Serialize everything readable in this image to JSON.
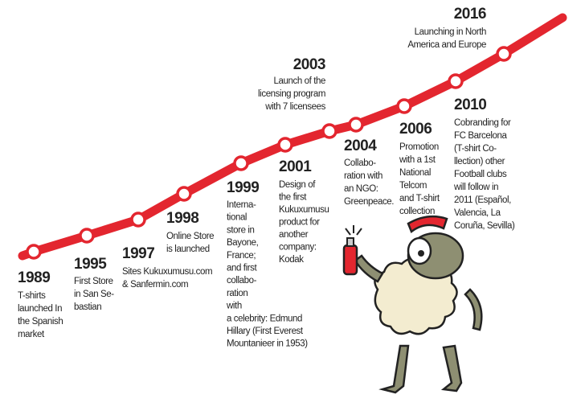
{
  "events": [
    {
      "year": "1989",
      "lines": [
        "T-shirts",
        "launched In",
        "the Spanish",
        "market"
      ]
    },
    {
      "year": "1995",
      "lines": [
        "First Store",
        "in San Se-",
        "bastian"
      ]
    },
    {
      "year": "1997",
      "lines": [
        "Sites Kukuxumusu.com",
        "& Sanfermin.com"
      ]
    },
    {
      "year": "1998",
      "lines": [
        "Online Store",
        "is launched"
      ]
    },
    {
      "year": "1999",
      "lines": [
        "Interna-",
        "tional",
        "store in",
        "Bayone,",
        "France;",
        "and first",
        "collabo-",
        "ration",
        "with",
        "a celebrity: Edmund",
        "Hillary (First Everest",
        "Mountanieer in 1953)"
      ]
    },
    {
      "year": "2001",
      "lines": [
        "Design of",
        "the first",
        "Kukuxumusu",
        "product for",
        "another",
        "company:",
        "Kodak"
      ]
    },
    {
      "year": "2003",
      "lines": [
        "Launch of the",
        "licensing program",
        "with 7 licensees"
      ]
    },
    {
      "year": "2004",
      "lines": [
        "Collabo-",
        "ration with",
        "an NGO:",
        "Greenpeace."
      ]
    },
    {
      "year": "2006",
      "lines": [
        "Promotion",
        "with a 1st",
        "National",
        "Telcom",
        "and T-shirt",
        "collection"
      ]
    },
    {
      "year": "2010",
      "lines": [
        "Cobranding for",
        "FC Barcelona",
        "(T-shirt Co-",
        "llection) other",
        "Football clubs",
        "will follow in",
        "2011 (Español,",
        "Valencia, La",
        "Coruña, Sevilla)"
      ]
    },
    {
      "year": "2016",
      "lines": [
        "Launching in North",
        "America and Europe"
      ]
    }
  ]
}
